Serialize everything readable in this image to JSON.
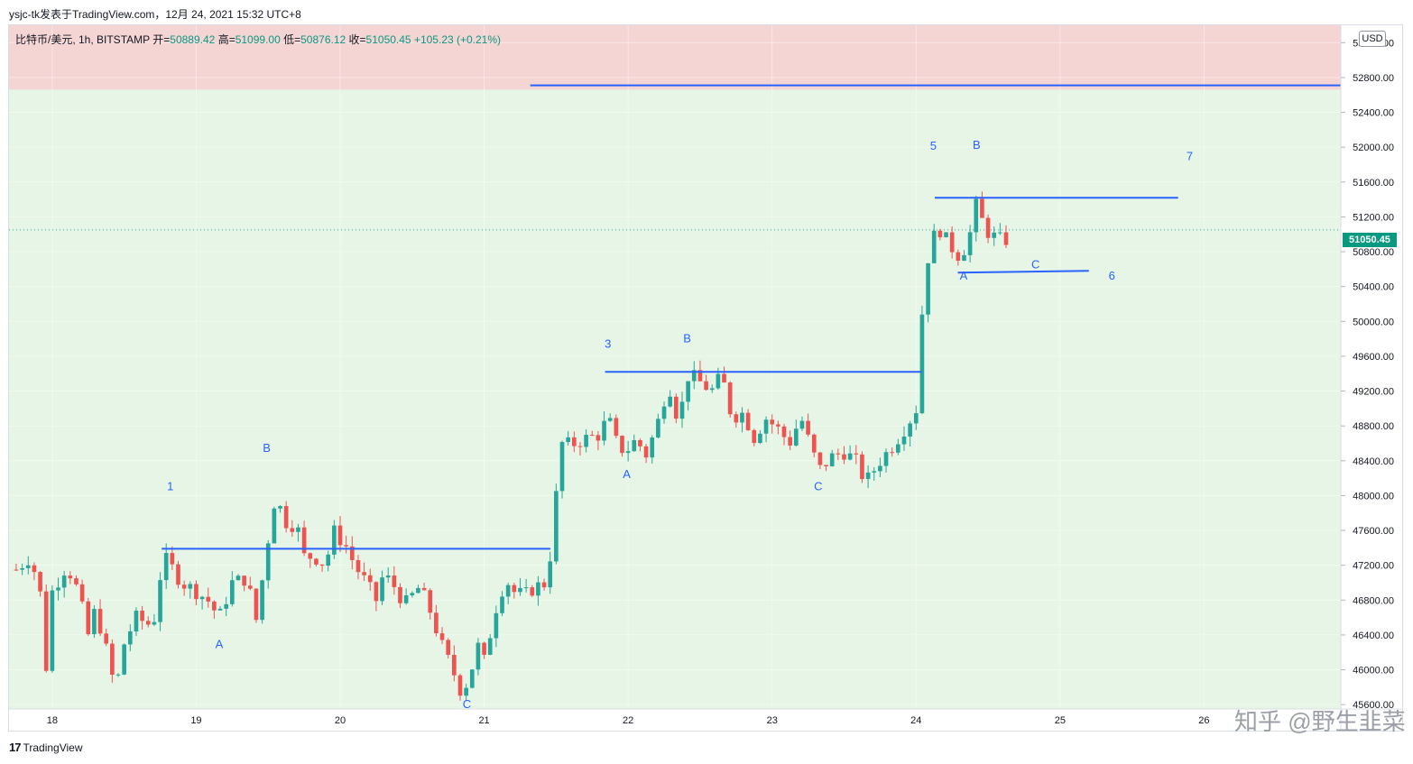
{
  "caption": "ysjc-tk发表于TradingView.com，12月 24, 2021 15:32 UTC+8",
  "legend": {
    "symbol": "比特币/美元, 1h, BITSTAMP",
    "open_label": "开=",
    "open": "50889.42",
    "high_label": "高=",
    "high": "51099.00",
    "low_label": "低=",
    "low": "50876.12",
    "close_label": "收=",
    "close": "51050.45",
    "change": "+105.23 (+0.21%)"
  },
  "currency_button": "USD",
  "last_price_tag": "51050.45",
  "footer": {
    "logo_mark": "17",
    "logo_text": "TradingView"
  },
  "watermark": "知乎 @野生韭菜",
  "colors": {
    "up": "#26a69a",
    "down": "#ef5350",
    "line": "#2962ff",
    "label": "#2962ff",
    "green_zone": "#e6f5e6",
    "red_zone": "#f5d4d4"
  },
  "chart_data": {
    "type": "candlestick",
    "timeframe": "1h",
    "xlabel": "",
    "ylabel": "",
    "ylim": [
      45550,
      53400
    ],
    "xlim": [
      17.7,
      26.95
    ],
    "x_ticks": [
      "18",
      "19",
      "20",
      "21",
      "22",
      "23",
      "24",
      "25",
      "26"
    ],
    "y_ticks": [
      "45600.00",
      "46000.00",
      "46400.00",
      "46800.00",
      "47200.00",
      "47600.00",
      "48000.00",
      "48400.00",
      "48800.00",
      "49200.00",
      "49600.00",
      "50000.00",
      "50400.00",
      "50800.00",
      "51200.00",
      "51600.00",
      "52000.00",
      "52400.00",
      "52800.00",
      "53200.00"
    ],
    "last_price": 51050.45,
    "zones": [
      {
        "kind": "resistance",
        "from": 52660,
        "to": 53400
      },
      {
        "kind": "support",
        "from": 45550,
        "to": 52660
      }
    ],
    "lines": [
      {
        "x1": 18.76,
        "x2": 21.46,
        "y": 47390
      },
      {
        "x1": 21.32,
        "x2": 26.95,
        "y": 52710
      },
      {
        "x1": 21.84,
        "x2": 24.04,
        "y": 49420
      },
      {
        "x1": 24.13,
        "x2": 25.82,
        "y": 51420
      },
      {
        "x1": 24.29,
        "x2": 25.2,
        "y1": 50560,
        "y2": 50580
      }
    ],
    "wave_labels": [
      {
        "text": "1",
        "x": 18.82,
        "y": 48060
      },
      {
        "text": "A",
        "x": 19.16,
        "y": 46250
      },
      {
        "text": "B",
        "x": 19.49,
        "y": 48500
      },
      {
        "text": "C",
        "x": 20.88,
        "y": 45560
      },
      {
        "text": "3",
        "x": 21.86,
        "y": 49700
      },
      {
        "text": "A",
        "x": 21.99,
        "y": 48200
      },
      {
        "text": "B",
        "x": 22.41,
        "y": 49760
      },
      {
        "text": "C",
        "x": 23.32,
        "y": 48060
      },
      {
        "text": "5",
        "x": 24.12,
        "y": 51970
      },
      {
        "text": "A",
        "x": 24.33,
        "y": 50480
      },
      {
        "text": "B",
        "x": 24.42,
        "y": 51980
      },
      {
        "text": "C",
        "x": 24.83,
        "y": 50610
      },
      {
        "text": "6",
        "x": 25.36,
        "y": 50480
      },
      {
        "text": "7",
        "x": 25.9,
        "y": 51850
      }
    ],
    "anchors": [
      [
        17.75,
        47150
      ],
      [
        17.85,
        47300
      ],
      [
        17.92,
        46850
      ],
      [
        17.96,
        46000
      ],
      [
        18.0,
        46900
      ],
      [
        18.1,
        47200
      ],
      [
        18.18,
        46900
      ],
      [
        18.25,
        46400
      ],
      [
        18.3,
        46700
      ],
      [
        18.38,
        46200
      ],
      [
        18.44,
        45750
      ],
      [
        18.5,
        46300
      ],
      [
        18.58,
        46600
      ],
      [
        18.7,
        46500
      ],
      [
        18.77,
        47300
      ],
      [
        18.82,
        47200
      ],
      [
        18.9,
        47000
      ],
      [
        19.0,
        46900
      ],
      [
        19.08,
        46800
      ],
      [
        19.16,
        46600
      ],
      [
        19.25,
        47000
      ],
      [
        19.35,
        47050
      ],
      [
        19.42,
        46550
      ],
      [
        19.48,
        47300
      ],
      [
        19.55,
        48000
      ],
      [
        19.62,
        47700
      ],
      [
        19.7,
        47650
      ],
      [
        19.75,
        47300
      ],
      [
        19.82,
        47300
      ],
      [
        19.9,
        47200
      ],
      [
        19.95,
        47600
      ],
      [
        20.0,
        47500
      ],
      [
        20.05,
        47400
      ],
      [
        20.1,
        47200
      ],
      [
        20.18,
        47000
      ],
      [
        20.25,
        46800
      ],
      [
        20.3,
        47100
      ],
      [
        20.38,
        46950
      ],
      [
        20.45,
        46750
      ],
      [
        20.55,
        46950
      ],
      [
        20.62,
        46700
      ],
      [
        20.7,
        46300
      ],
      [
        20.78,
        46000
      ],
      [
        20.84,
        45750
      ],
      [
        20.9,
        45900
      ],
      [
        20.95,
        46300
      ],
      [
        21.0,
        46100
      ],
      [
        21.08,
        46700
      ],
      [
        21.15,
        47050
      ],
      [
        21.2,
        46900
      ],
      [
        21.28,
        46850
      ],
      [
        21.35,
        46950
      ],
      [
        21.44,
        47000
      ],
      [
        21.5,
        48000
      ],
      [
        21.54,
        48600
      ],
      [
        21.6,
        48580
      ],
      [
        21.7,
        48650
      ],
      [
        21.8,
        48700
      ],
      [
        21.86,
        48900
      ],
      [
        21.92,
        48600
      ],
      [
        21.98,
        48500
      ],
      [
        22.06,
        48650
      ],
      [
        22.12,
        48450
      ],
      [
        22.2,
        48800
      ],
      [
        22.28,
        49300
      ],
      [
        22.35,
        48850
      ],
      [
        22.42,
        49400
      ],
      [
        22.5,
        49300
      ],
      [
        22.58,
        49200
      ],
      [
        22.65,
        49380
      ],
      [
        22.72,
        48900
      ],
      [
        22.8,
        48950
      ],
      [
        22.88,
        48650
      ],
      [
        22.95,
        48900
      ],
      [
        23.05,
        48750
      ],
      [
        23.12,
        48600
      ],
      [
        23.2,
        48900
      ],
      [
        23.28,
        48500
      ],
      [
        23.33,
        48300
      ],
      [
        23.42,
        48450
      ],
      [
        23.5,
        48500
      ],
      [
        23.58,
        48400
      ],
      [
        23.65,
        48150
      ],
      [
        23.75,
        48400
      ],
      [
        23.85,
        48600
      ],
      [
        23.95,
        48850
      ],
      [
        24.02,
        49050
      ],
      [
        24.05,
        50500
      ],
      [
        24.1,
        50850
      ],
      [
        24.15,
        51100
      ],
      [
        24.22,
        50900
      ],
      [
        24.3,
        50750
      ],
      [
        24.36,
        50900
      ],
      [
        24.42,
        51350
      ],
      [
        24.48,
        51050
      ],
      [
        24.56,
        50950
      ],
      [
        24.62,
        50920
      ],
      [
        24.66,
        51050
      ]
    ]
  }
}
